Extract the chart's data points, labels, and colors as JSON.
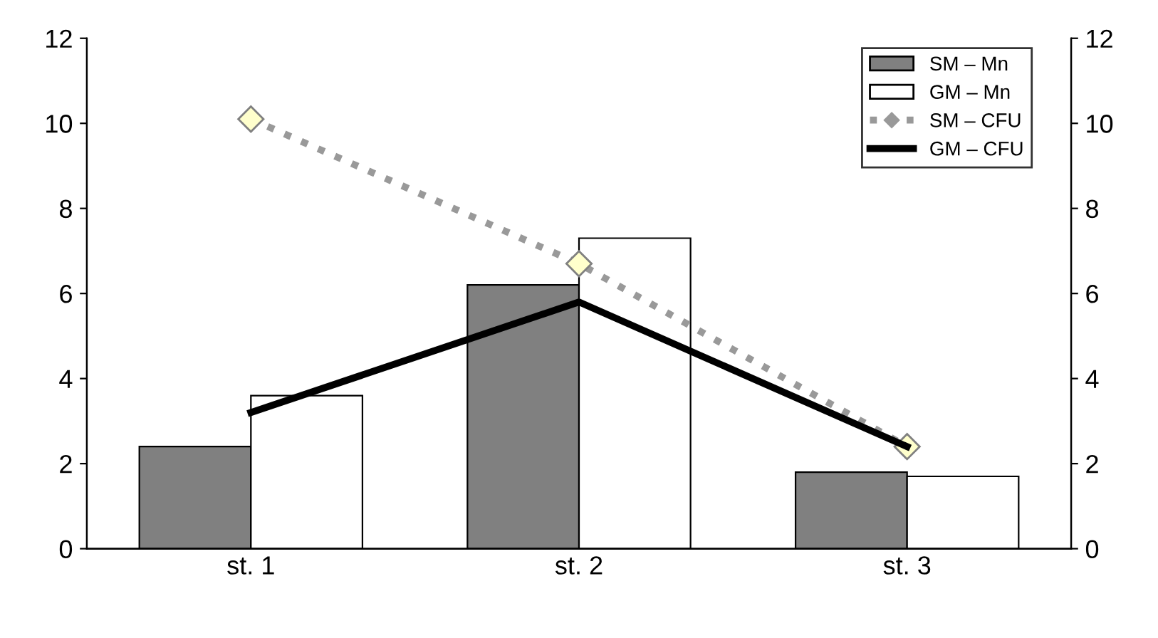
{
  "chart_data": {
    "type": "bar",
    "categories": [
      "st. 1",
      "st. 2",
      "st. 3"
    ],
    "series": [
      {
        "name": "SM – Mn",
        "color": "#808080",
        "values": [
          2.4,
          6.2,
          1.8
        ]
      },
      {
        "name": "GM – Mn",
        "color": "#ffffff",
        "values": [
          3.6,
          7.3,
          1.7
        ]
      },
      {
        "name": "SM – CFU",
        "type": "line",
        "color": "#999999",
        "line_style": "dotted",
        "marker": "diamond",
        "values": [
          10.1,
          6.7,
          2.4
        ]
      },
      {
        "name": "GM – CFU",
        "type": "line",
        "color": "#000000",
        "line_style": "solid",
        "marker": "none",
        "values": [
          3.2,
          5.8,
          2.4
        ]
      }
    ],
    "ylim": [
      0,
      12
    ],
    "yticks": [
      0,
      2,
      4,
      6,
      8,
      10,
      12
    ],
    "y2lim": [
      0,
      12
    ],
    "y2ticks": [
      0,
      2,
      4,
      6,
      8,
      10,
      12
    ],
    "legend": "top right",
    "grid": false
  }
}
